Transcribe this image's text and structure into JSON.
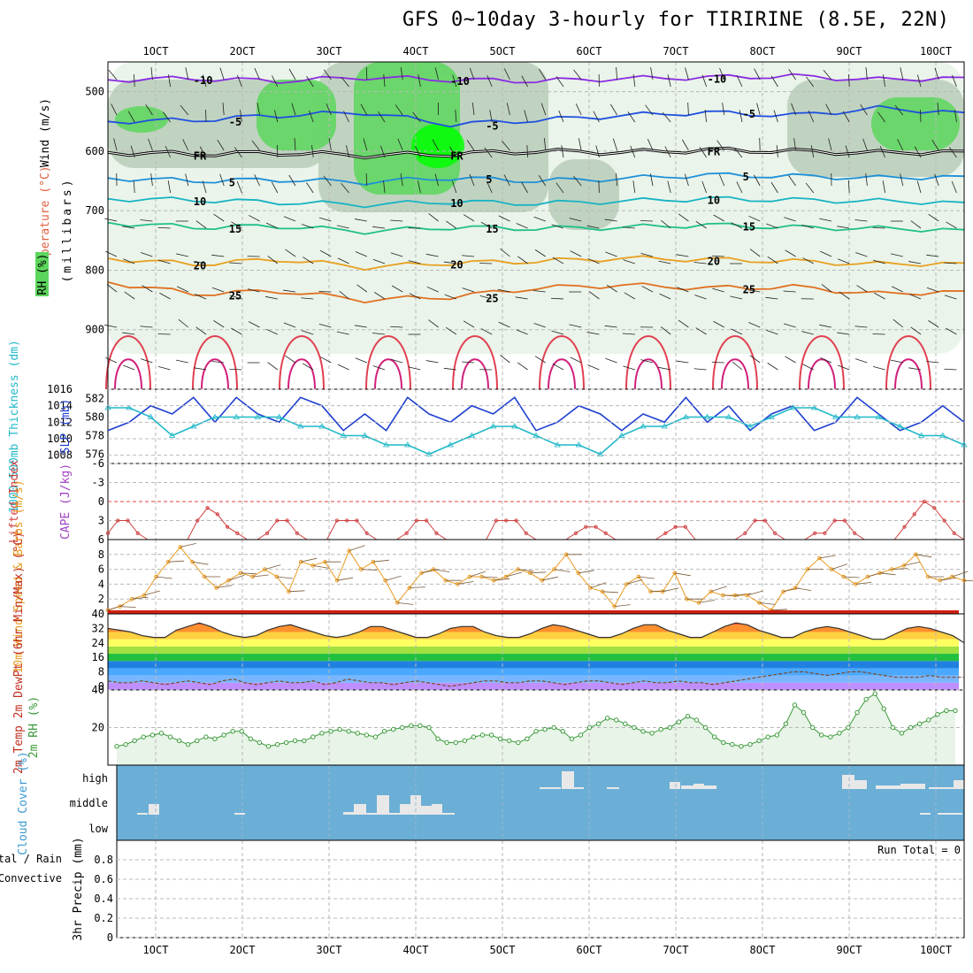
{
  "header": {
    "title": "GFS 0~10day 3-hourly for TIRIRINE (8.5E, 22N)"
  },
  "days": [
    "1OCT",
    "2OCT",
    "3OCT",
    "4OCT",
    "5OCT",
    "6OCT",
    "7OCT",
    "8OCT",
    "9OCT",
    "10OCT"
  ],
  "chart_data": [
    {
      "type": "heatmap",
      "panel": "upper-air",
      "labels": {
        "wind": "Wind (m/s)",
        "temperature": "Temperature (°C)",
        "rh": "RH (%)",
        "ylabel": "(millibars)"
      },
      "yticks": [
        "500",
        "600",
        "700",
        "800",
        "900"
      ],
      "ylim": [
        1000,
        450
      ],
      "temperature_contours": [
        {
          "label": "-10",
          "level": -10,
          "color": "#8a2be2",
          "p": [
            480,
            478,
            482,
            476,
            480,
            482,
            478,
            476,
            474,
            480,
            476
          ]
        },
        {
          "label": "-5",
          "level": -5,
          "color": "#1f4fe0",
          "p": [
            550,
            548,
            540,
            535,
            555,
            548,
            540,
            535,
            540,
            528,
            535
          ]
        },
        {
          "label": "FR",
          "level": 0,
          "color": "#000000",
          "p": [
            602,
            605,
            603,
            607,
            605,
            600,
            602,
            598,
            600,
            603,
            600
          ]
        },
        {
          "label": "5",
          "level": 5,
          "color": "#1e90d8",
          "p": [
            645,
            650,
            648,
            652,
            645,
            650,
            646,
            640,
            642,
            645,
            642
          ]
        },
        {
          "label": "10",
          "level": 10,
          "color": "#17b3c4",
          "p": [
            680,
            682,
            686,
            690,
            685,
            688,
            684,
            680,
            682,
            684,
            686
          ]
        },
        {
          "label": "15",
          "level": 15,
          "color": "#1fbf8a",
          "p": [
            720,
            728,
            726,
            735,
            728,
            730,
            728,
            724,
            728,
            730,
            732
          ]
        },
        {
          "label": "20",
          "level": 20,
          "color": "#e8a020",
          "p": [
            780,
            790,
            782,
            795,
            788,
            785,
            780,
            782,
            785,
            790,
            788
          ]
        },
        {
          "label": "25",
          "level": 25,
          "color": "#e07020",
          "p": [
            820,
            840,
            835,
            850,
            845,
            830,
            825,
            830,
            828,
            840,
            835
          ]
        }
      ],
      "rh_contours": [
        "30",
        "60",
        "90"
      ]
    },
    {
      "type": "line",
      "panel": "thickness-slp",
      "labels": {
        "thickness": "1000-500mb Thickness (dm)",
        "slp": "SLP (mb)"
      },
      "yticks_left": [
        "576",
        "578",
        "580",
        "582"
      ],
      "yticks_right": [
        "1008",
        "1010",
        "1012",
        "1014",
        "1016"
      ],
      "series": [
        {
          "name": "SLP",
          "color": "#1f3fd0",
          "ylim": [
            1007,
            1016
          ],
          "values": [
            1011,
            1012,
            1014,
            1013,
            1015,
            1012,
            1015,
            1013,
            1012,
            1015,
            1014,
            1011,
            1013,
            1011,
            1015,
            1013,
            1012,
            1014,
            1013,
            1015,
            1011,
            1012,
            1014,
            1013,
            1011,
            1013,
            1012,
            1015,
            1012,
            1014,
            1011,
            1013,
            1014,
            1011,
            1012,
            1015,
            1013,
            1011,
            1012,
            1014,
            1012
          ]
        },
        {
          "name": "Thickness",
          "color": "#20b8c8",
          "ylim": [
            575,
            583
          ],
          "values": [
            581,
            581,
            580,
            578,
            579,
            580,
            580,
            580,
            580,
            579,
            579,
            578,
            578,
            577,
            577,
            576,
            577,
            578,
            579,
            579,
            578,
            577,
            577,
            576,
            578,
            579,
            579,
            580,
            580,
            580,
            579,
            580,
            581,
            581,
            580,
            580,
            580,
            579,
            578,
            578,
            577
          ]
        }
      ]
    },
    {
      "type": "line",
      "panel": "stability",
      "labels": {
        "li": "Lifted Index",
        "cape": "CAPE (J/kg)"
      },
      "yticks": [
        "-6",
        "-3",
        "0",
        "3",
        "6"
      ],
      "ylim": [
        -6,
        6
      ],
      "series": [
        {
          "name": "Lifted Index",
          "color": "#d04040",
          "values": [
            5,
            3,
            3,
            5,
            6,
            6,
            6,
            6,
            6,
            3,
            1,
            2,
            4,
            5,
            6,
            6,
            5,
            3,
            3,
            5,
            6,
            6,
            6,
            3,
            3,
            3,
            5,
            6,
            6,
            6,
            5,
            3,
            3,
            5,
            6,
            6,
            6,
            6,
            6,
            3,
            3,
            3,
            5,
            6,
            6,
            6,
            6,
            5,
            4,
            4,
            5,
            6,
            6,
            6,
            6,
            6,
            5,
            4,
            4,
            6,
            6,
            6,
            6,
            6,
            5,
            3,
            3,
            5,
            6,
            6,
            6,
            5,
            5,
            3,
            3,
            5,
            6,
            6,
            6,
            6,
            4,
            2,
            0,
            1,
            3,
            5,
            6
          ]
        }
      ]
    },
    {
      "type": "line",
      "panel": "wind10m",
      "labels": {
        "ylabel": "10m Wind Speed & Barbs (m/s)"
      },
      "yticks": [
        "2",
        "4",
        "6",
        "8"
      ],
      "ylim": [
        0,
        10
      ],
      "series": [
        {
          "name": "Speed",
          "color": "#e89a20",
          "values": [
            0.5,
            1,
            2,
            2.5,
            5,
            7,
            9,
            7,
            5,
            3.5,
            4.5,
            5.5,
            5,
            6,
            5,
            3,
            7,
            6.5,
            7,
            4.5,
            8.5,
            6,
            7,
            4.5,
            1.5,
            3.5,
            5.5,
            6,
            4.5,
            4,
            5,
            5,
            4.5,
            5,
            6,
            5.5,
            4.5,
            6,
            8,
            5.5,
            3.5,
            3,
            1,
            4,
            5,
            3,
            3,
            5.5,
            2,
            1.5,
            3,
            2.5,
            2.5,
            2.5,
            1.5,
            0.5,
            3,
            3.5,
            6,
            7.5,
            6,
            5,
            4,
            5,
            5.5,
            6,
            6.5,
            8,
            5,
            4.5,
            5,
            4.5
          ]
        }
      ]
    },
    {
      "type": "area",
      "panel": "temp2m",
      "labels": {
        "ylabel": "2m Temp 2m DewPt (6hr Min/Max) (°C)"
      },
      "yticks": [
        "0",
        "8",
        "16",
        "24",
        "32",
        "40"
      ],
      "ylim": [
        -2,
        40
      ],
      "series": [
        {
          "name": "2m Temp",
          "color": "#303030",
          "values": [
            32,
            31,
            30,
            28,
            27,
            27,
            31,
            33,
            35,
            33,
            30,
            28,
            27,
            28,
            31,
            33,
            34,
            32,
            30,
            28,
            27,
            28,
            30,
            33,
            33,
            31,
            29,
            27,
            27,
            29,
            32,
            33,
            33,
            30,
            28,
            27,
            27,
            29,
            32,
            34,
            33,
            31,
            29,
            27,
            27,
            29,
            32,
            34,
            34,
            31,
            29,
            27,
            27,
            30,
            33,
            35,
            34,
            31,
            29,
            27,
            27,
            30,
            32,
            33,
            32,
            30,
            28,
            26,
            26,
            29,
            32,
            33,
            32,
            30,
            28,
            24
          ]
        },
        {
          "name": "2m DewPt",
          "color": "#7a4a2a",
          "values": [
            3,
            2,
            2,
            3,
            2,
            1,
            2,
            3,
            2,
            1,
            3,
            4,
            2,
            1,
            2,
            3,
            2,
            2,
            3,
            1,
            2,
            4,
            3,
            2,
            2,
            1,
            2,
            3,
            2,
            1,
            0,
            1,
            2,
            3,
            3,
            2,
            2,
            3,
            3,
            2,
            1,
            2,
            3,
            3,
            2,
            1,
            2,
            3,
            2,
            2,
            3,
            2,
            2,
            1,
            2,
            3,
            4,
            5,
            6,
            7,
            8,
            8,
            7,
            6,
            7,
            8,
            8,
            7,
            6,
            5,
            5,
            5,
            6,
            5,
            5,
            5
          ]
        }
      ]
    },
    {
      "type": "area",
      "panel": "rh2m",
      "labels": {
        "ylabel": "2m RH (%)"
      },
      "yticks": [
        "20",
        "40"
      ],
      "ylim": [
        0,
        40
      ],
      "series": [
        {
          "name": "2m RH",
          "color": "#3a9a3a",
          "values": [
            10,
            11,
            13,
            15,
            16,
            17,
            15,
            13,
            11,
            13,
            15,
            14,
            16,
            18,
            18,
            14,
            12,
            10,
            11,
            12,
            13,
            13,
            15,
            17,
            18,
            19,
            18,
            17,
            16,
            15,
            18,
            19,
            20,
            21,
            21,
            20,
            14,
            12,
            12,
            13,
            15,
            16,
            16,
            14,
            13,
            12,
            14,
            18,
            19,
            20,
            18,
            14,
            16,
            20,
            22,
            25,
            24,
            22,
            20,
            18,
            17,
            19,
            20,
            23,
            26,
            24,
            20,
            15,
            12,
            11,
            10,
            11,
            13,
            15,
            16,
            22,
            32,
            28,
            20,
            16,
            15,
            17,
            20,
            28,
            35,
            38,
            30,
            20,
            17,
            20,
            22,
            24,
            27,
            29,
            29
          ]
        }
      ]
    },
    {
      "type": "bar",
      "panel": "cloud",
      "labels": {
        "ylabel": "Cloud Cover (%)"
      },
      "categories": [
        "high",
        "middle",
        "low"
      ]
    },
    {
      "type": "line",
      "panel": "precip",
      "labels": {
        "ylabel": "3hr Precip (mm)",
        "legend1": "Total / Rain",
        "legend2": "Convective",
        "note": "Run Total = 0"
      },
      "yticks": [
        "0",
        "0.2",
        "0.4",
        "0.6",
        "0.8"
      ],
      "ylim": [
        0,
        1
      ]
    }
  ],
  "colors": {
    "grid": "#b8b8b8",
    "rh_light": "#e6f2e6",
    "rh_mid": "#b8ccb8",
    "rh_dark": "#5cd65c",
    "rh_bright": "#00ff00",
    "cloud_bg": "#6baed6",
    "cloud_bar": "#e8e8e8",
    "li_zero": "#e04040",
    "temp_bands": [
      "#bf8fff",
      "#7ab6ff",
      "#4aa8ff",
      "#2080e0",
      "#20c040",
      "#a0e040",
      "#ffff60",
      "#ffd040",
      "#ff9030",
      "#ff5020",
      "#d02010"
    ]
  }
}
